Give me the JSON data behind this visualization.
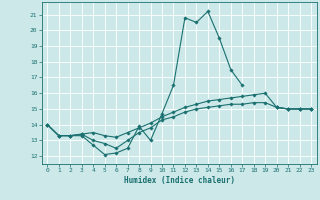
{
  "title": "",
  "xlabel": "Humidex (Indice chaleur)",
  "ylabel": "",
  "bg_color": "#cce8e8",
  "grid_color": "#ffffff",
  "line_color": "#1a7070",
  "xlim": [
    -0.5,
    23.5
  ],
  "ylim": [
    11.5,
    21.8
  ],
  "x": [
    0,
    1,
    2,
    3,
    4,
    5,
    6,
    7,
    8,
    9,
    10,
    11,
    12,
    13,
    14,
    15,
    16,
    17,
    18,
    19,
    20,
    21,
    22,
    23
  ],
  "line1": [
    14.0,
    13.3,
    13.3,
    13.3,
    12.7,
    12.1,
    12.2,
    12.5,
    13.9,
    13.0,
    14.7,
    16.5,
    20.8,
    20.5,
    21.2,
    19.5,
    17.5,
    16.5,
    null,
    null,
    15.1,
    15.0,
    15.0,
    15.0
  ],
  "line2": [
    14.0,
    13.3,
    13.3,
    13.4,
    13.5,
    13.3,
    13.2,
    13.5,
    13.8,
    14.1,
    14.5,
    14.8,
    15.1,
    15.3,
    15.5,
    15.6,
    15.7,
    15.8,
    15.9,
    16.0,
    15.1,
    15.0,
    15.0,
    15.0
  ],
  "line3": [
    14.0,
    13.3,
    13.3,
    13.4,
    13.0,
    12.8,
    12.5,
    13.0,
    13.5,
    13.8,
    14.3,
    14.5,
    14.8,
    15.0,
    15.1,
    15.2,
    15.3,
    15.3,
    15.4,
    15.4,
    15.1,
    15.0,
    15.0,
    15.0
  ],
  "yticks": [
    12,
    13,
    14,
    15,
    16,
    17,
    18,
    19,
    20,
    21
  ],
  "xticks": [
    0,
    1,
    2,
    3,
    4,
    5,
    6,
    7,
    8,
    9,
    10,
    11,
    12,
    13,
    14,
    15,
    16,
    17,
    18,
    19,
    20,
    21,
    22,
    23
  ]
}
